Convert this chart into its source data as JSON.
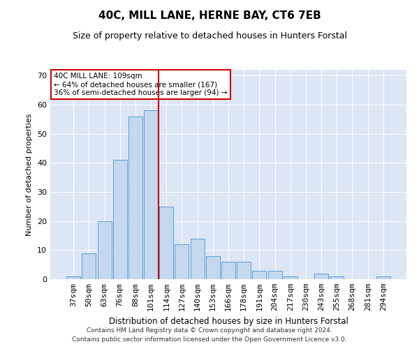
{
  "title": "40C, MILL LANE, HERNE BAY, CT6 7EB",
  "subtitle": "Size of property relative to detached houses in Hunters Forstal",
  "xlabel": "Distribution of detached houses by size in Hunters Forstal",
  "ylabel": "Number of detached properties",
  "categories": [
    "37sqm",
    "50sqm",
    "63sqm",
    "76sqm",
    "88sqm",
    "101sqm",
    "114sqm",
    "127sqm",
    "140sqm",
    "153sqm",
    "166sqm",
    "178sqm",
    "191sqm",
    "204sqm",
    "217sqm",
    "230sqm",
    "243sqm",
    "255sqm",
    "268sqm",
    "281sqm",
    "294sqm"
  ],
  "values": [
    1,
    9,
    20,
    41,
    56,
    58,
    25,
    12,
    14,
    8,
    6,
    6,
    3,
    3,
    1,
    0,
    2,
    1,
    0,
    0,
    1
  ],
  "bar_color": "#c5d8f0",
  "bar_edge_color": "#5a9fd4",
  "vline_x": 6.0,
  "vline_color": "#cc0000",
  "annotation_text": "40C MILL LANE: 109sqm\n← 64% of detached houses are smaller (167)\n36% of semi-detached houses are larger (94) →",
  "annotation_box_color": "#ffffff",
  "annotation_box_edge_color": "#cc0000",
  "ylim": [
    0,
    72
  ],
  "yticks": [
    0,
    10,
    20,
    30,
    40,
    50,
    60,
    70
  ],
  "background_color": "#dce6f5",
  "footer_line1": "Contains HM Land Registry data © Crown copyright and database right 2024.",
  "footer_line2": "Contains public sector information licensed under the Open Government Licence v3.0."
}
